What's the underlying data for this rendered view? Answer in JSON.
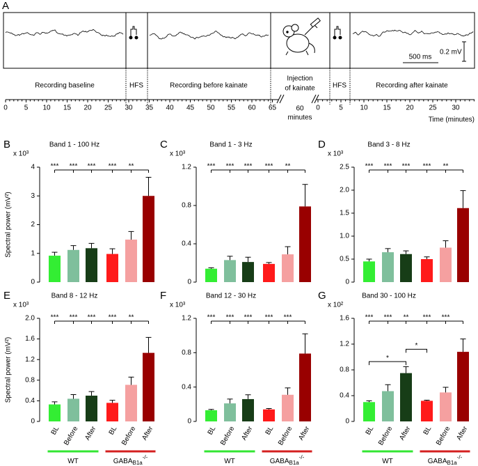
{
  "panel_a": {
    "letter": "A",
    "labels": {
      "baseline": "Recording baseline",
      "hfs1": "HFS",
      "before": "Recording before kainate",
      "injection_1": "Injection",
      "injection_2": "of kainate",
      "hfs2": "HFS",
      "after": "Recording after kainate",
      "gap_1": "60",
      "gap_2": "minutes"
    },
    "scale_time": "500 ms",
    "scale_voltage": "0.2 mV",
    "xlabel": "Time (minutes)",
    "ticks_1": [
      0,
      5,
      10,
      15,
      20,
      25,
      30,
      35,
      40,
      45,
      50,
      55,
      60,
      65
    ],
    "ticks_2": [
      0,
      5,
      10,
      15,
      20,
      25,
      30
    ]
  },
  "groups": [
    {
      "name": "WT",
      "color": "#33e633"
    },
    {
      "name": "GABA",
      "sub": "B1a",
      "sup": "-/-",
      "color": "#d42020"
    }
  ],
  "chart_data": [
    {
      "type": "bar",
      "panel": "B",
      "title": "Band 1 - 100 Hz",
      "multiplier": "x 10³",
      "ylabel": "Spectral power (mV²)",
      "values": [
        0.92,
        1.12,
        1.18,
        0.98,
        1.48,
        3.0
      ],
      "errors": [
        0.12,
        0.15,
        0.17,
        0.18,
        0.28,
        0.65
      ],
      "colors": [
        "#33ee33",
        "#7fbf9c",
        "#173d17",
        "#ff1a1a",
        "#f5a0a0",
        "#990000"
      ],
      "ylim": [
        0,
        4
      ],
      "yticks": [
        0,
        1,
        2,
        3,
        4
      ],
      "significance": [
        "***",
        "***",
        "***",
        "***",
        "**"
      ]
    },
    {
      "type": "bar",
      "panel": "C",
      "title": "Band 1 - 3 Hz",
      "multiplier": "x 10³",
      "values": [
        0.14,
        0.23,
        0.21,
        0.19,
        0.29,
        0.79
      ],
      "errors": [
        0.01,
        0.04,
        0.05,
        0.015,
        0.08,
        0.23
      ],
      "colors": [
        "#33ee33",
        "#7fbf9c",
        "#173d17",
        "#ff1a1a",
        "#f5a0a0",
        "#990000"
      ],
      "ylim": [
        0,
        1.2
      ],
      "yticks": [
        0,
        0.4,
        0.8,
        1.2
      ],
      "significance": [
        "***",
        "***",
        "***",
        "***",
        "**"
      ]
    },
    {
      "type": "bar",
      "panel": "D",
      "title": "Band 3 - 8 Hz",
      "multiplier": "x 10³",
      "values": [
        0.45,
        0.65,
        0.61,
        0.5,
        0.75,
        1.61
      ],
      "errors": [
        0.05,
        0.08,
        0.07,
        0.05,
        0.15,
        0.38
      ],
      "colors": [
        "#33ee33",
        "#7fbf9c",
        "#173d17",
        "#ff1a1a",
        "#f5a0a0",
        "#990000"
      ],
      "ylim": [
        0,
        2.5
      ],
      "yticks": [
        0,
        0.5,
        {
          "value": 1,
          "label": "1.0"
        },
        1.5,
        {
          "value": 2,
          "label": "2.0"
        },
        2.5
      ],
      "significance": [
        "***",
        "***",
        "***",
        "***",
        "**"
      ]
    },
    {
      "type": "bar",
      "panel": "E",
      "title": "Band 8 - 12 Hz",
      "multiplier": "x 10³",
      "ylabel": "Spectral power (mV²)",
      "categories": [
        "BL",
        "Before",
        "After",
        "BL",
        "Before",
        "After"
      ],
      "values": [
        0.33,
        0.44,
        0.5,
        0.36,
        0.71,
        1.33
      ],
      "errors": [
        0.05,
        0.08,
        0.08,
        0.05,
        0.15,
        0.3
      ],
      "colors": [
        "#33ee33",
        "#7fbf9c",
        "#173d17",
        "#ff1a1a",
        "#f5a0a0",
        "#990000"
      ],
      "ylim": [
        0,
        2
      ],
      "yticks": [
        0,
        0.4,
        0.8,
        1.2,
        1.6,
        {
          "value": 2,
          "label": "2.0"
        }
      ],
      "significance": [
        "***",
        "***",
        "***",
        "***",
        "**"
      ]
    },
    {
      "type": "bar",
      "panel": "F",
      "title": "Band 12 - 30 Hz",
      "multiplier": "x 10³",
      "categories": [
        "BL",
        "Before",
        "After",
        "BL",
        "Before",
        "After"
      ],
      "values": [
        0.13,
        0.21,
        0.26,
        0.14,
        0.31,
        0.79
      ],
      "errors": [
        0.01,
        0.05,
        0.05,
        0.01,
        0.08,
        0.23
      ],
      "colors": [
        "#33ee33",
        "#7fbf9c",
        "#173d17",
        "#ff1a1a",
        "#f5a0a0",
        "#990000"
      ],
      "ylim": [
        0,
        1.2
      ],
      "yticks": [
        0,
        0.4,
        0.8,
        1.2
      ],
      "significance": [
        "***",
        "***",
        "***",
        "***",
        "***"
      ]
    },
    {
      "type": "bar",
      "panel": "G",
      "title": "Band 30 - 100 Hz",
      "multiplier": "x 10²",
      "categories": [
        "BL",
        "Before",
        "After",
        "BL",
        "Before",
        "After"
      ],
      "values": [
        0.3,
        0.47,
        0.75,
        0.32,
        0.45,
        1.08
      ],
      "errors": [
        0.02,
        0.1,
        0.1,
        0.01,
        0.08,
        0.2
      ],
      "colors": [
        "#33ee33",
        "#7fbf9c",
        "#173d17",
        "#ff1a1a",
        "#f5a0a0",
        "#990000"
      ],
      "ylim": [
        0,
        1.6
      ],
      "yticks": [
        0,
        0.4,
        0.8,
        1.2,
        1.6
      ],
      "significance": [
        "***",
        "***",
        "**",
        "***",
        "***"
      ],
      "comparisons": [
        "*",
        "*"
      ]
    }
  ]
}
